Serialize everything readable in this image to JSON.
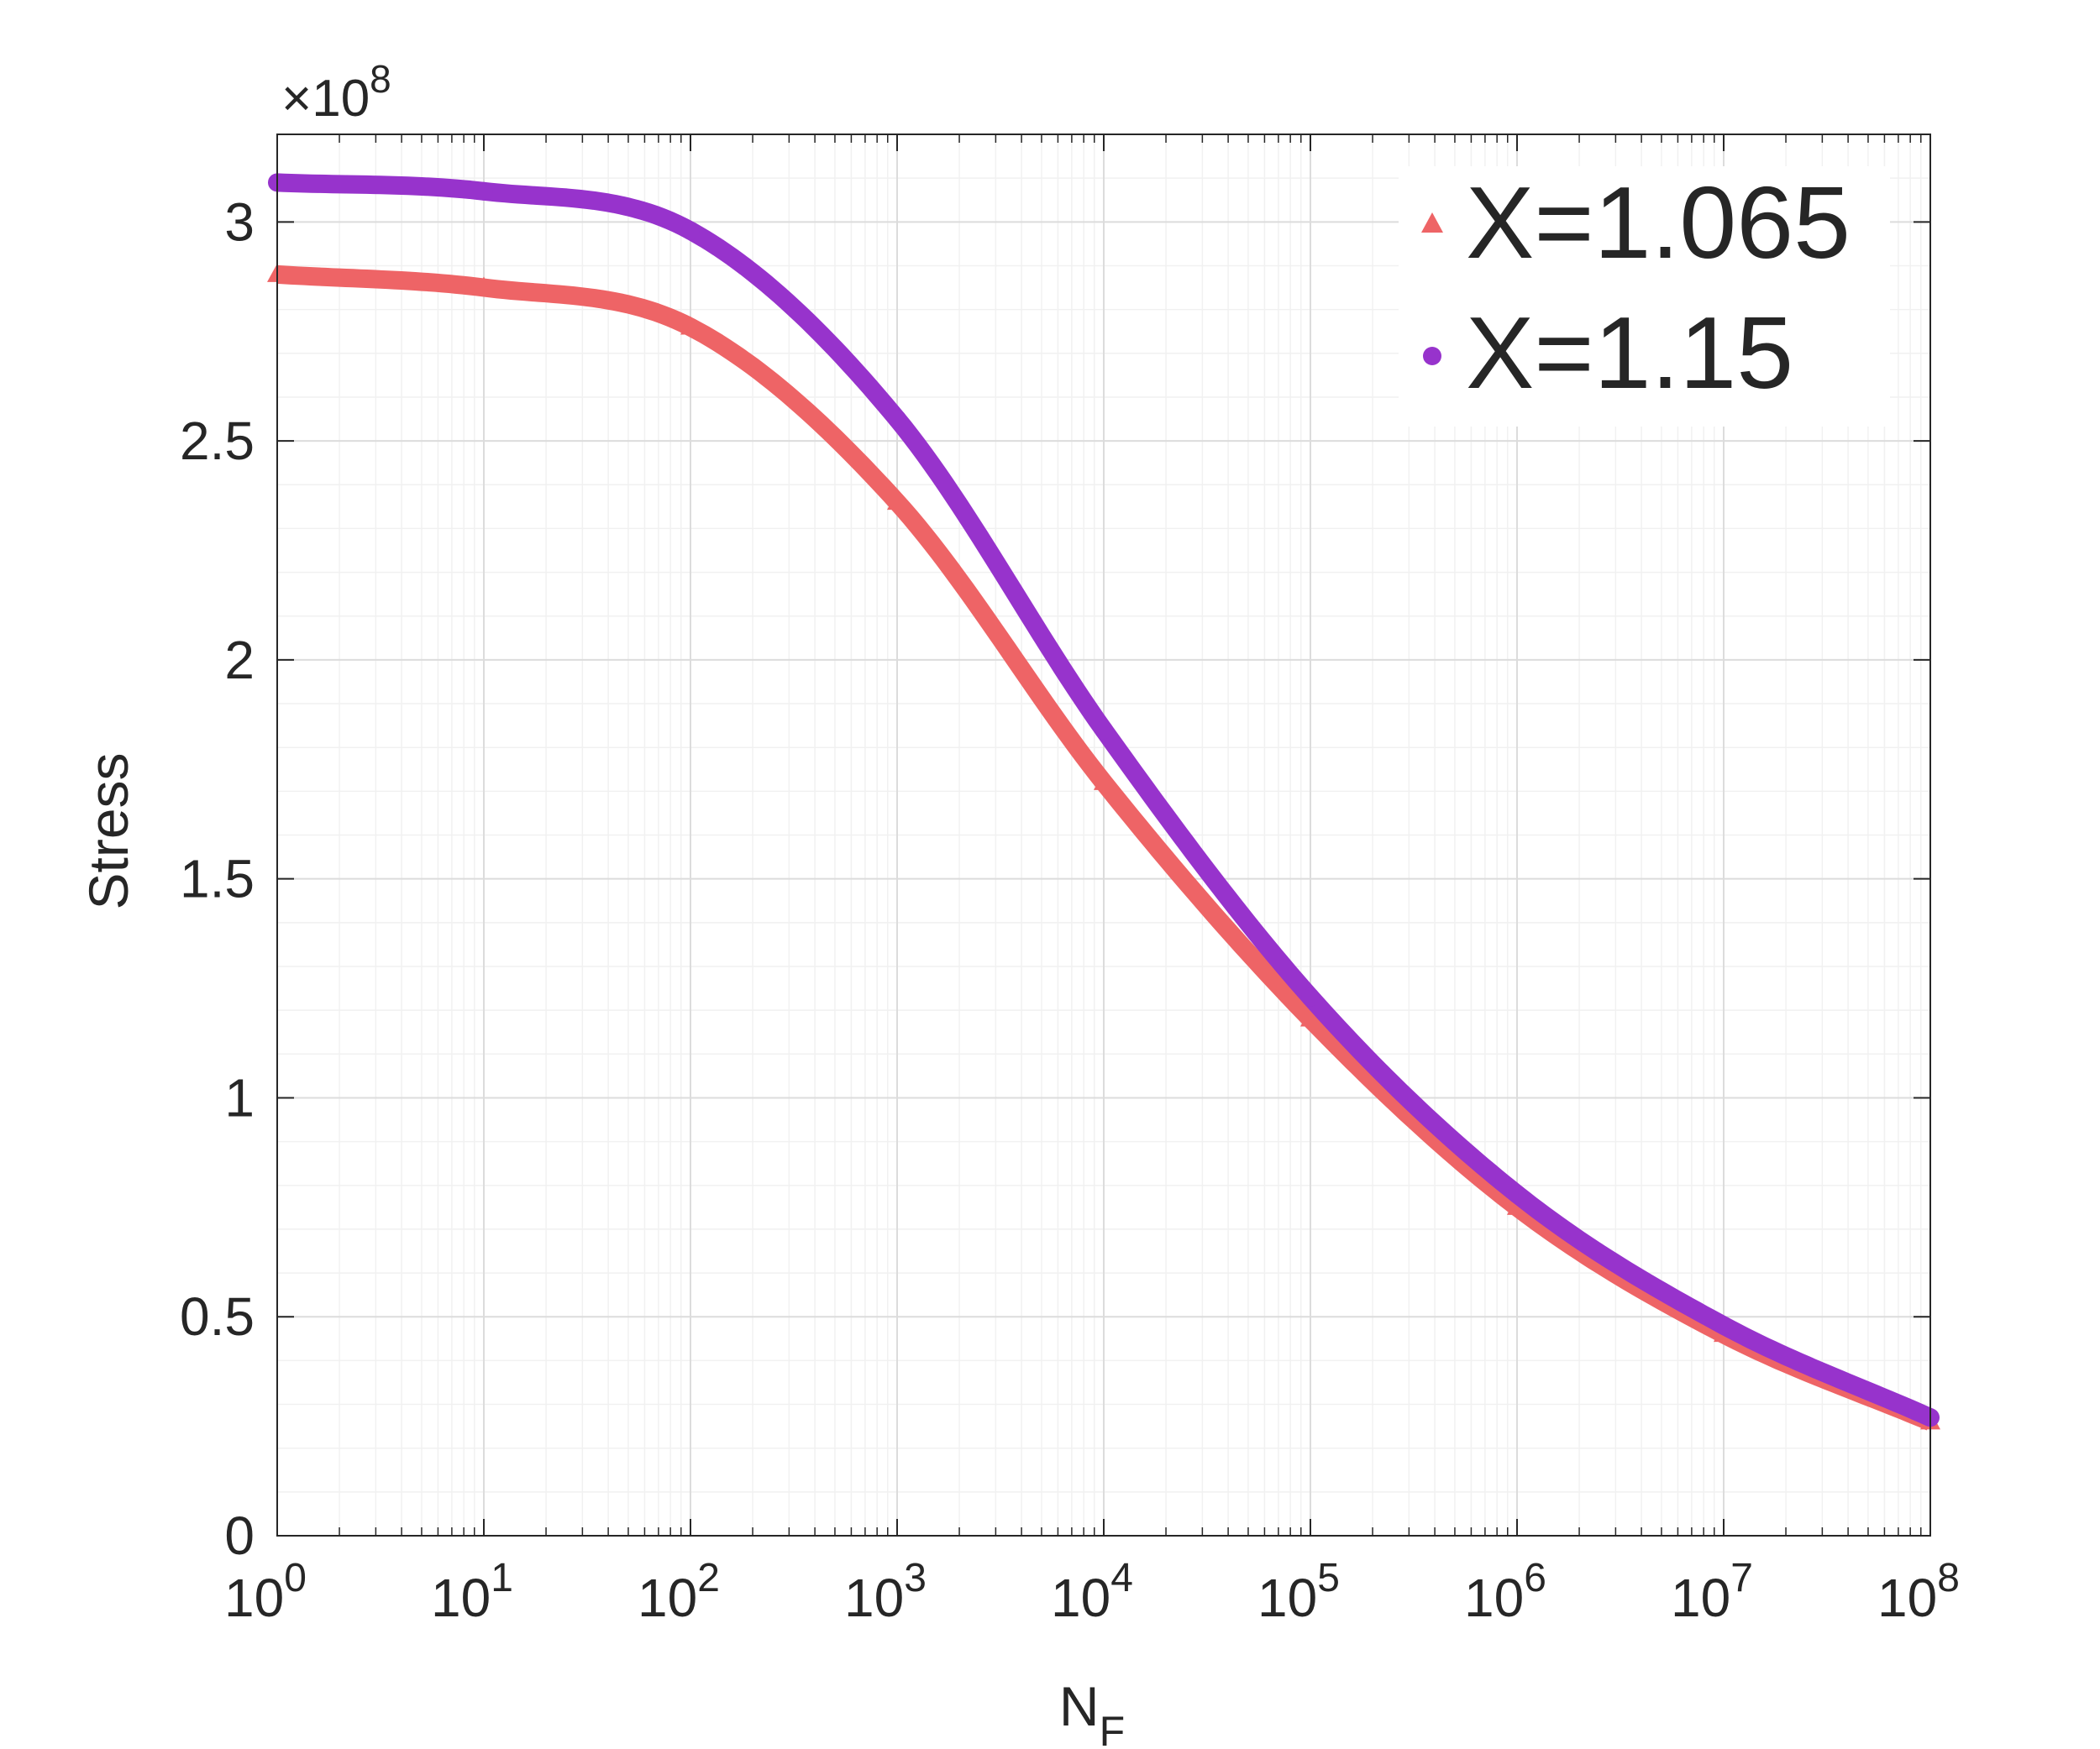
{
  "chart_data": {
    "type": "line",
    "title": "",
    "xlabel": "N",
    "xlabel_subscript": "F",
    "ylabel": "Stress",
    "y_exponent_base": "×10",
    "y_exponent_power": "8",
    "x_scale": "log",
    "xlim": [
      1,
      100000000
    ],
    "ylim": [
      0,
      3.2
    ],
    "y_unit_multiplier": 100000000,
    "grid": true,
    "minor_grid": true,
    "legend_position": "top-right",
    "x_ticks": [
      {
        "base": "10",
        "exp": "0"
      },
      {
        "base": "10",
        "exp": "1"
      },
      {
        "base": "10",
        "exp": "2"
      },
      {
        "base": "10",
        "exp": "3"
      },
      {
        "base": "10",
        "exp": "4"
      },
      {
        "base": "10",
        "exp": "5"
      },
      {
        "base": "10",
        "exp": "6"
      },
      {
        "base": "10",
        "exp": "7"
      },
      {
        "base": "10",
        "exp": "8"
      }
    ],
    "y_ticks": [
      "0",
      "0.5",
      "1",
      "1.5",
      "2",
      "2.5",
      "3"
    ],
    "series": [
      {
        "name": "X=1.065",
        "color": "#EE6466",
        "marker": "triangle",
        "x": [
          1,
          10,
          100,
          1000,
          10000,
          100000,
          1000000,
          10000000,
          100000000
        ],
        "y": [
          2.88,
          2.85,
          2.76,
          2.36,
          1.72,
          1.18,
          0.75,
          0.46,
          0.26
        ]
      },
      {
        "name": "X=1.15",
        "color": "#9733CC",
        "marker": "circle",
        "x": [
          1,
          10,
          100,
          1000,
          10000,
          100000,
          1000000,
          10000000,
          100000000
        ],
        "y": [
          3.09,
          3.07,
          2.98,
          2.55,
          1.84,
          1.23,
          0.78,
          0.48,
          0.27
        ]
      }
    ]
  }
}
